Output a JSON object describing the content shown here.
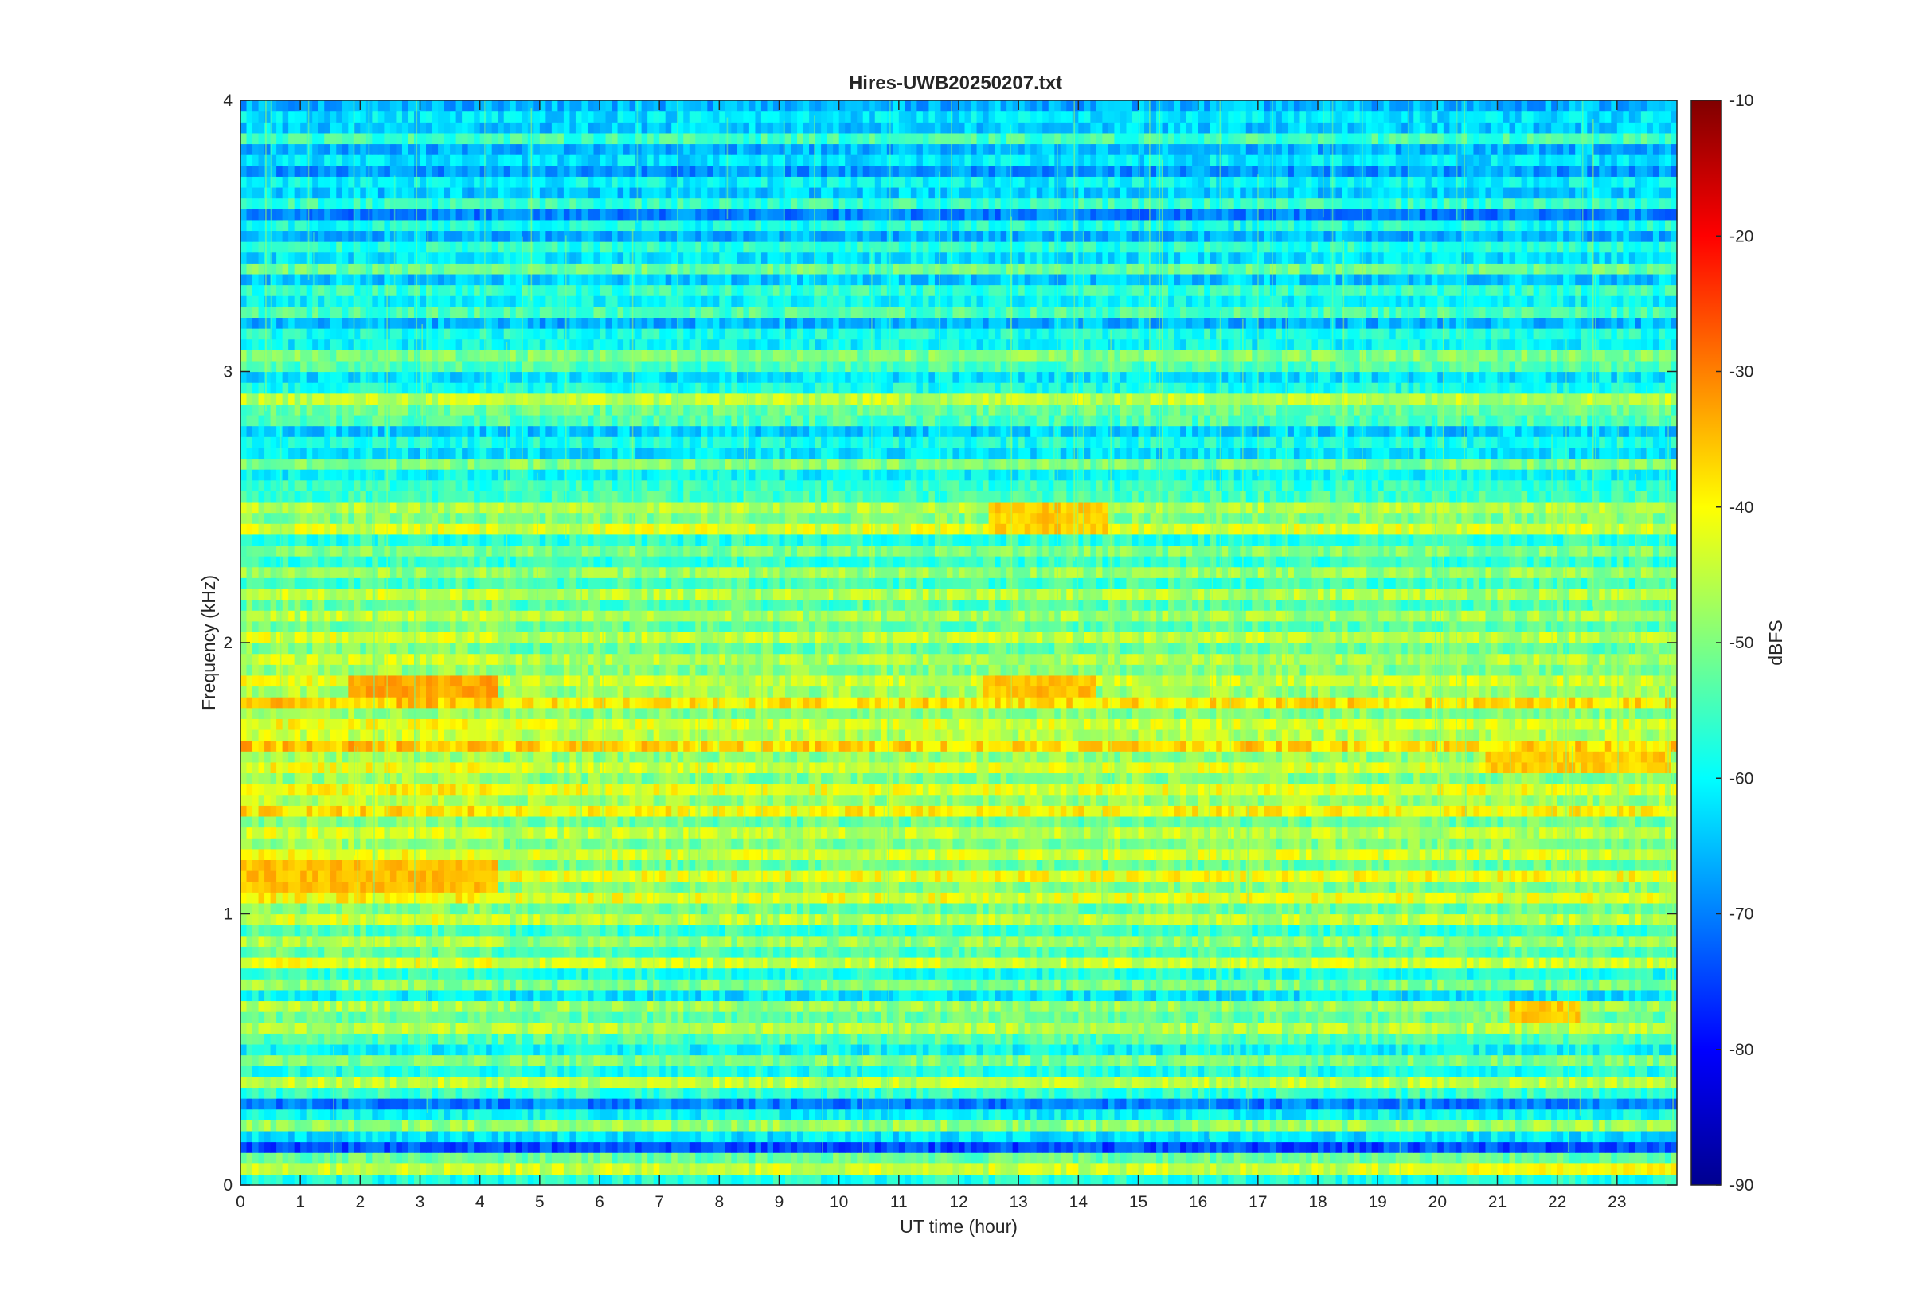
{
  "chart_data": {
    "type": "heatmap",
    "title": "Hires-UWB20250207.txt",
    "xlabel": "UT time (hour)",
    "ylabel": "Frequency (kHz)",
    "xlim": [
      0,
      24
    ],
    "ylim": [
      0,
      4
    ],
    "x_ticks": [
      0,
      1,
      2,
      3,
      4,
      5,
      6,
      7,
      8,
      9,
      10,
      11,
      12,
      13,
      14,
      15,
      16,
      17,
      18,
      19,
      20,
      21,
      22,
      23
    ],
    "x_tick_labels": [
      "0",
      "1",
      "2",
      "3",
      "4",
      "5",
      "6",
      "7",
      "8",
      "9",
      "10",
      "11",
      "12",
      "13",
      "14",
      "15",
      "16",
      "17",
      "18",
      "19",
      "20",
      "21",
      "22",
      "23"
    ],
    "y_ticks": [
      0,
      1,
      2,
      3,
      4
    ],
    "y_tick_labels": [
      "0",
      "1",
      "2",
      "3",
      "4"
    ],
    "colorbar": {
      "label": "dBFS",
      "range": [
        -90,
        -10
      ],
      "ticks": [
        -90,
        -80,
        -70,
        -60,
        -50,
        -40,
        -30,
        -20,
        -10
      ],
      "tick_labels": [
        "-90",
        "-80",
        "-70",
        "-60",
        "-50",
        "-40",
        "-30",
        "-20",
        "-10"
      ],
      "colormap": "jet"
    },
    "grid": false,
    "band_levels_dbfs": [
      -58,
      -44,
      -52,
      -74,
      -62,
      -48,
      -60,
      -70,
      -56,
      -45,
      -58,
      -50,
      -60,
      -54,
      -46,
      -52,
      -48,
      -62,
      -50,
      -58,
      -44,
      -54,
      -48,
      -56,
      -45,
      -52,
      -42,
      -50,
      -41,
      -52,
      -43,
      -50,
      -45,
      -52,
      -40,
      -48,
      -42,
      -50,
      -43,
      -49,
      -37,
      -46,
      -43,
      -50,
      -38,
      -48,
      -44,
      -50,
      -46,
      -52,
      -45,
      -53,
      -47,
      -54,
      -46,
      -55,
      -48,
      -56,
      -50,
      -57,
      -43,
      -50,
      -46,
      -55,
      -56,
      -60,
      -50,
      -62,
      -58,
      -64,
      -54,
      -52,
      -45,
      -58,
      -62,
      -54,
      -50,
      -60,
      -58,
      -66,
      -54,
      -60,
      -56,
      -64,
      -52,
      -62,
      -57,
      -66,
      -58,
      -70,
      -56,
      -64,
      -60,
      -68,
      -62,
      -66,
      -55,
      -64,
      -62,
      -66
    ],
    "bright_episodes": [
      {
        "freq_khz": [
          1.8,
          1.88
        ],
        "time_hour": [
          1.8,
          4.3
        ],
        "level_dbfs": -33
      },
      {
        "freq_khz": [
          1.8,
          1.88
        ],
        "time_hour": [
          12.4,
          14.3
        ],
        "level_dbfs": -35
      },
      {
        "freq_khz": [
          1.08,
          1.18
        ],
        "time_hour": [
          0,
          4.3
        ],
        "level_dbfs": -35
      },
      {
        "freq_khz": [
          2.42,
          2.5
        ],
        "time_hour": [
          12.5,
          14.5
        ],
        "level_dbfs": -36
      },
      {
        "freq_khz": [
          0.62,
          0.68
        ],
        "time_hour": [
          21.2,
          22.4
        ],
        "level_dbfs": -36
      },
      {
        "freq_khz": [
          1.52,
          1.58
        ],
        "time_hour": [
          20.8,
          23.9
        ],
        "level_dbfs": -36
      },
      {
        "freq_khz": [
          0.04,
          0.07
        ],
        "time_hour": [
          20.5,
          24.0
        ],
        "level_dbfs": -40
      }
    ]
  }
}
